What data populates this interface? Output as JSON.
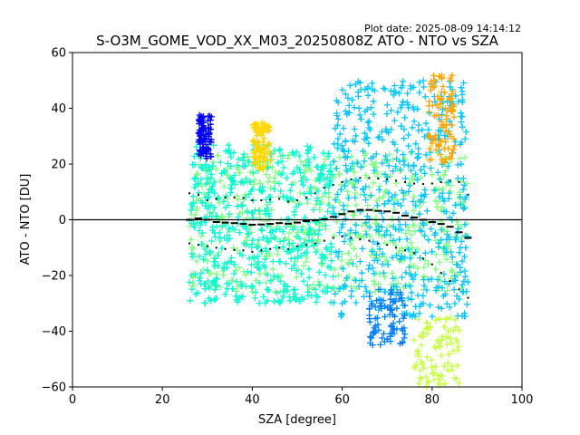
{
  "chart_data": {
    "type": "scatter",
    "title": "S-O3M_GOME_VOD_XX_M03_20250808Z ATO - NTO vs SZA",
    "plot_date": "Plot date: 2025-08-09 14:14:12",
    "xlabel": "SZA [degree]",
    "ylabel": "ATO - NTO [DU]",
    "xlim": [
      0,
      100
    ],
    "ylim": [
      -60,
      60
    ],
    "x_ticks": [
      0,
      20,
      40,
      60,
      80,
      100
    ],
    "y_ticks": [
      -60,
      -40,
      -20,
      0,
      20,
      40,
      60
    ],
    "x_tick_labels": [
      "0",
      "20",
      "40",
      "60",
      "80",
      "100"
    ],
    "y_tick_labels": [
      "−60",
      "−40",
      "−20",
      "0",
      "20",
      "40",
      "60"
    ],
    "grid": false,
    "marker": "+",
    "color_scale": [
      "#0000ff",
      "#0080ff",
      "#00c8ff",
      "#00ffd0",
      "#80ff80",
      "#c8ff40",
      "#ffd700",
      "#ffa500"
    ],
    "reference_line_y": 0,
    "mean_line": {
      "x": [
        26,
        28,
        30,
        32,
        34,
        36,
        38,
        40,
        42,
        44,
        46,
        48,
        50,
        52,
        54,
        56,
        58,
        60,
        62,
        64,
        66,
        68,
        70,
        72,
        74,
        76,
        78,
        80,
        82,
        84,
        86,
        88
      ],
      "y": [
        0.0,
        0.5,
        0.0,
        -0.8,
        -1.0,
        -1.2,
        -1.5,
        -1.8,
        -1.7,
        -1.5,
        -1.2,
        -1.4,
        -1.0,
        -0.5,
        -0.2,
        0.2,
        1.0,
        2.0,
        3.0,
        3.5,
        3.5,
        3.2,
        3.0,
        2.5,
        1.5,
        0.8,
        0.0,
        -0.8,
        -1.5,
        -2.5,
        -4.5,
        -6.5
      ]
    },
    "upper_std_line": {
      "x": [
        26,
        28,
        30,
        32,
        34,
        36,
        38,
        40,
        42,
        44,
        46,
        48,
        50,
        52,
        54,
        56,
        58,
        60,
        62,
        64,
        66,
        68,
        70,
        72,
        74,
        76,
        78,
        80,
        82,
        84,
        86,
        88
      ],
      "y": [
        9.5,
        9.0,
        7.0,
        7.5,
        8.0,
        8.0,
        7.8,
        7.0,
        7.0,
        7.2,
        7.5,
        6.5,
        7.0,
        8.0,
        9.5,
        11.5,
        12.5,
        13.5,
        14.5,
        15.0,
        15.0,
        14.8,
        14.5,
        14.0,
        13.5,
        13.0,
        12.8,
        13.0,
        13.5,
        14.0,
        13.5,
        9.0
      ]
    },
    "lower_std_line": {
      "x": [
        26,
        28,
        30,
        32,
        34,
        36,
        38,
        40,
        42,
        44,
        46,
        48,
        50,
        52,
        54,
        56,
        58,
        60,
        62,
        64,
        66,
        68,
        70,
        72,
        74,
        76,
        78,
        80,
        82,
        84,
        86,
        88
      ],
      "y": [
        -8.5,
        -9.0,
        -9.5,
        -10.0,
        -10.5,
        -10.8,
        -11.0,
        -11.5,
        -11.0,
        -10.5,
        -10.0,
        -10.5,
        -9.5,
        -9.0,
        -8.5,
        -7.5,
        -6.5,
        -6.0,
        -6.5,
        -7.0,
        -7.5,
        -8.5,
        -9.0,
        -10.0,
        -11.0,
        -12.0,
        -14.0,
        -16.0,
        -19.0,
        -22.0,
        -25.0,
        -28.0
      ]
    },
    "scatter_clusters": [
      {
        "x": [
          26,
          88
        ],
        "y": [
          -26,
          24
        ],
        "color": "#80ff80"
      },
      {
        "x": [
          26,
          58
        ],
        "y": [
          -30,
          27
        ],
        "color": "#00ffd0"
      },
      {
        "x": [
          58,
          88
        ],
        "y": [
          -35,
          50
        ],
        "color": "#00c8ff"
      },
      {
        "x": [
          40,
          44
        ],
        "y": [
          18,
          35
        ],
        "color": "#ffd700"
      },
      {
        "x": [
          76,
          86
        ],
        "y": [
          -60,
          -35
        ],
        "color": "#c8ff40"
      },
      {
        "x": [
          79,
          85
        ],
        "y": [
          20,
          52
        ],
        "color": "#ffa500"
      },
      {
        "x": [
          28,
          31
        ],
        "y": [
          22,
          38
        ],
        "color": "#0000ff"
      },
      {
        "x": [
          66,
          74
        ],
        "y": [
          -45,
          -25
        ],
        "color": "#0080ff"
      }
    ]
  }
}
